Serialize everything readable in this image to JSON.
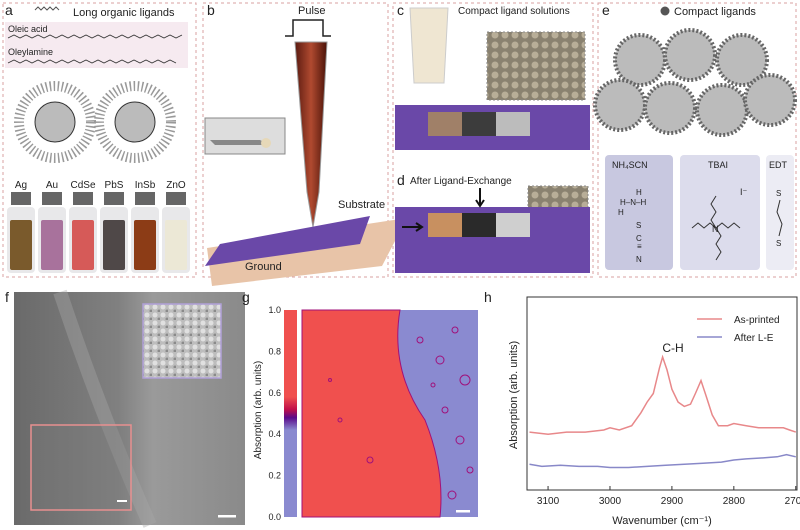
{
  "panel_a": {
    "letter": "a",
    "legend": "Long organic ligands",
    "molecules": [
      "Oleic acid",
      "Oleylamine"
    ],
    "vials": [
      {
        "label": "Ag",
        "color": "#7a5a2c"
      },
      {
        "label": "Au",
        "color": "#a8729c"
      },
      {
        "label": "CdSe",
        "color": "#d65a58"
      },
      {
        "label": "PbS",
        "color": "#4f4848"
      },
      {
        "label": "InSb",
        "color": "#8c3c16"
      },
      {
        "label": "ZnO",
        "color": "#ece8d6"
      }
    ]
  },
  "panel_b": {
    "letter": "b",
    "pulse": "Pulse",
    "substrate": "Substrate",
    "ground": "Ground"
  },
  "panel_c": {
    "letter": "c",
    "label": "Compact ligand solutions"
  },
  "panel_d": {
    "letter": "d",
    "label": "After Ligand-Exchange"
  },
  "panel_e": {
    "letter": "e",
    "legend": "Compact ligands",
    "ligands": [
      {
        "name": "NH₄SCN"
      },
      {
        "name": "TBAI",
        "ion": "I⁻"
      },
      {
        "name": "EDT"
      }
    ]
  },
  "panel_f": {
    "letter": "f"
  },
  "panel_g": {
    "letter": "g",
    "ylabel": "Absorption (arb. units)",
    "colorbar_ticks": [
      "0.0",
      "0.2",
      "0.4",
      "0.6",
      "0.8",
      "1.0"
    ],
    "colors": {
      "high": "#f0504e",
      "low": "#8a8ad0",
      "edge": "#a0107a"
    }
  },
  "chart_data": {
    "type": "line",
    "letter": "h",
    "xlabel": "Wavenumber (cm⁻¹)",
    "ylabel": "Absorption (arb. units)",
    "xlim": [
      3134,
      2698
    ],
    "x_ticks": [
      "3100",
      "3000",
      "2900",
      "2800",
      "2700"
    ],
    "annotation": "C-H",
    "legend_position": "top-right",
    "series": [
      {
        "name": "As-printed",
        "color": "#e8888a",
        "x": [
          3130,
          3100,
          3070,
          3040,
          3010,
          3000,
          2985,
          2965,
          2950,
          2940,
          2930,
          2920,
          2915,
          2908,
          2900,
          2890,
          2880,
          2870,
          2862,
          2853,
          2845,
          2835,
          2825,
          2810,
          2800,
          2780,
          2760,
          2740,
          2720,
          2710,
          2700
        ],
        "y": [
          0.27,
          0.26,
          0.27,
          0.27,
          0.28,
          0.29,
          0.28,
          0.3,
          0.36,
          0.41,
          0.45,
          0.57,
          0.62,
          0.56,
          0.47,
          0.41,
          0.39,
          0.4,
          0.45,
          0.51,
          0.44,
          0.35,
          0.3,
          0.3,
          0.31,
          0.3,
          0.29,
          0.29,
          0.29,
          0.28,
          0.27
        ]
      },
      {
        "name": "After L-E",
        "color": "#8888c8",
        "x": [
          3130,
          3110,
          3080,
          3050,
          3020,
          3000,
          2970,
          2940,
          2910,
          2880,
          2850,
          2820,
          2800,
          2780,
          2750,
          2730,
          2715,
          2700
        ],
        "y": [
          0.12,
          0.11,
          0.115,
          0.11,
          0.11,
          0.105,
          0.105,
          0.11,
          0.115,
          0.12,
          0.125,
          0.13,
          0.14,
          0.145,
          0.15,
          0.155,
          0.165,
          0.155
        ]
      }
    ]
  }
}
